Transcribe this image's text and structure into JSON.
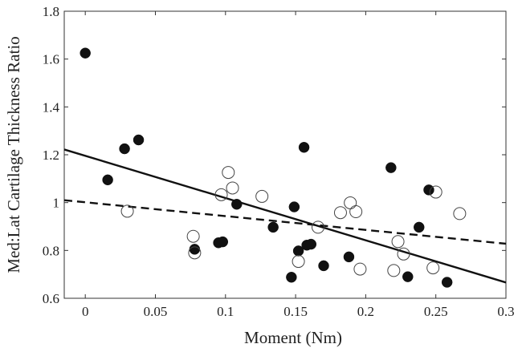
{
  "chart_data": {
    "type": "scatter",
    "xlabel": "Moment (Nm)",
    "ylabel": "Med:Lat Cartilage Thickness Ratio",
    "xlim": [
      -0.015,
      0.3
    ],
    "ylim": [
      0.6,
      1.8
    ],
    "x_ticks": [
      0,
      0.05,
      0.1,
      0.15,
      0.2,
      0.25,
      0.3
    ],
    "x_tick_labels": [
      "0",
      "0.05",
      "0.1",
      "0.15",
      "0.2",
      "0.25",
      "0.3"
    ],
    "y_ticks": [
      0.6,
      0.8,
      1.0,
      1.2,
      1.4,
      1.6,
      1.8
    ],
    "y_tick_labels": [
      "0.6",
      "0.8",
      "1",
      "1.2",
      "1.4",
      "1.6",
      "1.8"
    ],
    "grid": false,
    "series": [
      {
        "marker": "filled-circle",
        "color": "#111111",
        "points": [
          [
            0.0,
            1.625
          ],
          [
            0.016,
            1.095
          ],
          [
            0.028,
            1.225
          ],
          [
            0.038,
            1.262
          ],
          [
            0.078,
            0.805
          ],
          [
            0.095,
            0.832
          ],
          [
            0.098,
            0.836
          ],
          [
            0.108,
            0.993
          ],
          [
            0.134,
            0.897
          ],
          [
            0.147,
            0.688
          ],
          [
            0.149,
            0.982
          ],
          [
            0.152,
            0.798
          ],
          [
            0.156,
            1.231
          ],
          [
            0.158,
            0.822
          ],
          [
            0.161,
            0.826
          ],
          [
            0.17,
            0.736
          ],
          [
            0.188,
            0.773
          ],
          [
            0.218,
            1.146
          ],
          [
            0.23,
            0.69
          ],
          [
            0.238,
            0.897
          ],
          [
            0.245,
            1.053
          ],
          [
            0.258,
            0.667
          ]
        ]
      },
      {
        "marker": "open-circle",
        "color": "#444444",
        "points": [
          [
            0.03,
            0.964
          ],
          [
            0.077,
            0.859
          ],
          [
            0.078,
            0.79
          ],
          [
            0.097,
            1.033
          ],
          [
            0.102,
            1.126
          ],
          [
            0.105,
            1.061
          ],
          [
            0.126,
            1.026
          ],
          [
            0.152,
            0.754
          ],
          [
            0.166,
            0.897
          ],
          [
            0.182,
            0.958
          ],
          [
            0.189,
            0.999
          ],
          [
            0.193,
            0.962
          ],
          [
            0.196,
            0.722
          ],
          [
            0.22,
            0.716
          ],
          [
            0.223,
            0.837
          ],
          [
            0.227,
            0.785
          ],
          [
            0.248,
            0.727
          ],
          [
            0.25,
            1.044
          ],
          [
            0.267,
            0.954
          ]
        ]
      }
    ],
    "fit_lines": [
      {
        "style": "solid",
        "x": [
          -0.015,
          0.3
        ],
        "y": [
          1.222,
          0.666
        ]
      },
      {
        "style": "dashed",
        "x": [
          -0.015,
          0.3
        ],
        "y": [
          1.01,
          0.828
        ]
      }
    ]
  }
}
